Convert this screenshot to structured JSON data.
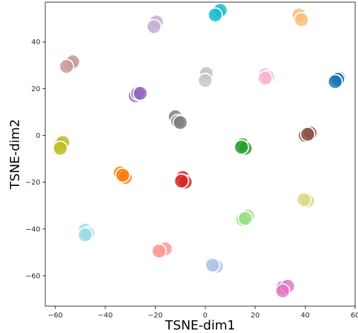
{
  "chart_data": {
    "type": "scatter",
    "title": "",
    "xlabel": "TSNE-dim1",
    "ylabel": "TSNE-dim2",
    "xlim": [
      -64,
      60
    ],
    "ylim": [
      -73,
      57
    ],
    "xticks": [
      -60,
      -40,
      -20,
      0,
      20,
      40,
      60
    ],
    "yticks": [
      -60,
      -40,
      -20,
      0,
      20,
      40
    ],
    "xtick_labels": [
      "−60",
      "−40",
      "−20",
      "0",
      "20",
      "40",
      "60"
    ],
    "ytick_labels": [
      "−60",
      "−40",
      "−20",
      "0",
      "20",
      "40"
    ],
    "grid": false,
    "marker": "circle, white edge, semi-opaque",
    "points": [
      {
        "x": 5,
        "y": 52.5,
        "color": "#17becf"
      },
      {
        "x": 6,
        "y": 53.5,
        "color": "#17becf"
      },
      {
        "x": 4,
        "y": 51.5,
        "color": "#17becf"
      },
      {
        "x": 37.5,
        "y": 51.5,
        "color": "#ffbb78"
      },
      {
        "x": 38.5,
        "y": 49.5,
        "color": "#ffbb78"
      },
      {
        "x": -20.5,
        "y": 47.5,
        "color": "#c5b0d5"
      },
      {
        "x": -19.5,
        "y": 48.5,
        "color": "#c5b0d5"
      },
      {
        "x": -20.5,
        "y": 46.5,
        "color": "#c5b0d5"
      },
      {
        "x": -54,
        "y": 30.5,
        "color": "#c49c94"
      },
      {
        "x": -53,
        "y": 31.5,
        "color": "#c49c94"
      },
      {
        "x": -55.5,
        "y": 29.5,
        "color": "#c49c94"
      },
      {
        "x": 0,
        "y": 25.5,
        "color": "#c7c7c7"
      },
      {
        "x": 0.5,
        "y": 26.5,
        "color": "#c7c7c7"
      },
      {
        "x": 0,
        "y": 23.5,
        "color": "#c7c7c7"
      },
      {
        "x": 24,
        "y": 26,
        "color": "#f7b6d2"
      },
      {
        "x": 25,
        "y": 25,
        "color": "#f7b6d2"
      },
      {
        "x": 24,
        "y": 24.5,
        "color": "#f7b6d2"
      },
      {
        "x": 53.5,
        "y": 24.5,
        "color": "#1f77b4"
      },
      {
        "x": 53,
        "y": 24,
        "color": "#1f77b4"
      },
      {
        "x": 52,
        "y": 23,
        "color": "#1f77b4"
      },
      {
        "x": -28,
        "y": 17,
        "color": "#9467bd"
      },
      {
        "x": -27,
        "y": 18,
        "color": "#9467bd"
      },
      {
        "x": -26,
        "y": 18,
        "color": "#9467bd"
      },
      {
        "x": -12,
        "y": 8,
        "color": "#7f7f7f"
      },
      {
        "x": -11,
        "y": 6,
        "color": "#7f7f7f"
      },
      {
        "x": -10,
        "y": 5.5,
        "color": "#7f7f7f"
      },
      {
        "x": 40,
        "y": 0,
        "color": "#8c564b"
      },
      {
        "x": 42,
        "y": 1,
        "color": "#8c564b"
      },
      {
        "x": 41,
        "y": 0.5,
        "color": "#8c564b"
      },
      {
        "x": -58,
        "y": -4,
        "color": "#bcbd22"
      },
      {
        "x": -57,
        "y": -3,
        "color": "#bcbd22"
      },
      {
        "x": -58,
        "y": -5.5,
        "color": "#bcbd22"
      },
      {
        "x": 15,
        "y": -4,
        "color": "#2ca02c"
      },
      {
        "x": 16,
        "y": -5.5,
        "color": "#2ca02c"
      },
      {
        "x": 14.5,
        "y": -5,
        "color": "#2ca02c"
      },
      {
        "x": -34,
        "y": -16,
        "color": "#ff7f0e"
      },
      {
        "x": -32,
        "y": -18,
        "color": "#ff7f0e"
      },
      {
        "x": -33,
        "y": -17,
        "color": "#ff7f0e"
      },
      {
        "x": -9,
        "y": -18,
        "color": "#d62728"
      },
      {
        "x": -8,
        "y": -20,
        "color": "#d62728"
      },
      {
        "x": -9.5,
        "y": -19.5,
        "color": "#d62728"
      },
      {
        "x": 40,
        "y": -27,
        "color": "#dbdb8d"
      },
      {
        "x": 41,
        "y": -28,
        "color": "#dbdb8d"
      },
      {
        "x": 39.5,
        "y": -27.5,
        "color": "#dbdb8d"
      },
      {
        "x": 17,
        "y": -34.5,
        "color": "#98df8a"
      },
      {
        "x": 15,
        "y": -36,
        "color": "#98df8a"
      },
      {
        "x": 16,
        "y": -35.5,
        "color": "#98df8a"
      },
      {
        "x": -48,
        "y": -40.5,
        "color": "#9edae5"
      },
      {
        "x": -47,
        "y": -42,
        "color": "#9edae5"
      },
      {
        "x": -48,
        "y": -42.5,
        "color": "#9edae5"
      },
      {
        "x": -18,
        "y": -49,
        "color": "#ff9896"
      },
      {
        "x": -16,
        "y": -48.5,
        "color": "#ff9896"
      },
      {
        "x": -18.5,
        "y": -49.5,
        "color": "#ff9896"
      },
      {
        "x": 2.5,
        "y": -55,
        "color": "#aec7e8"
      },
      {
        "x": 4.5,
        "y": -56,
        "color": "#aec7e8"
      },
      {
        "x": 3,
        "y": -55.5,
        "color": "#aec7e8"
      },
      {
        "x": 31,
        "y": -65,
        "color": "#e377c2"
      },
      {
        "x": 33,
        "y": -64.5,
        "color": "#e377c2"
      },
      {
        "x": 31,
        "y": -66.5,
        "color": "#e377c2"
      }
    ]
  }
}
